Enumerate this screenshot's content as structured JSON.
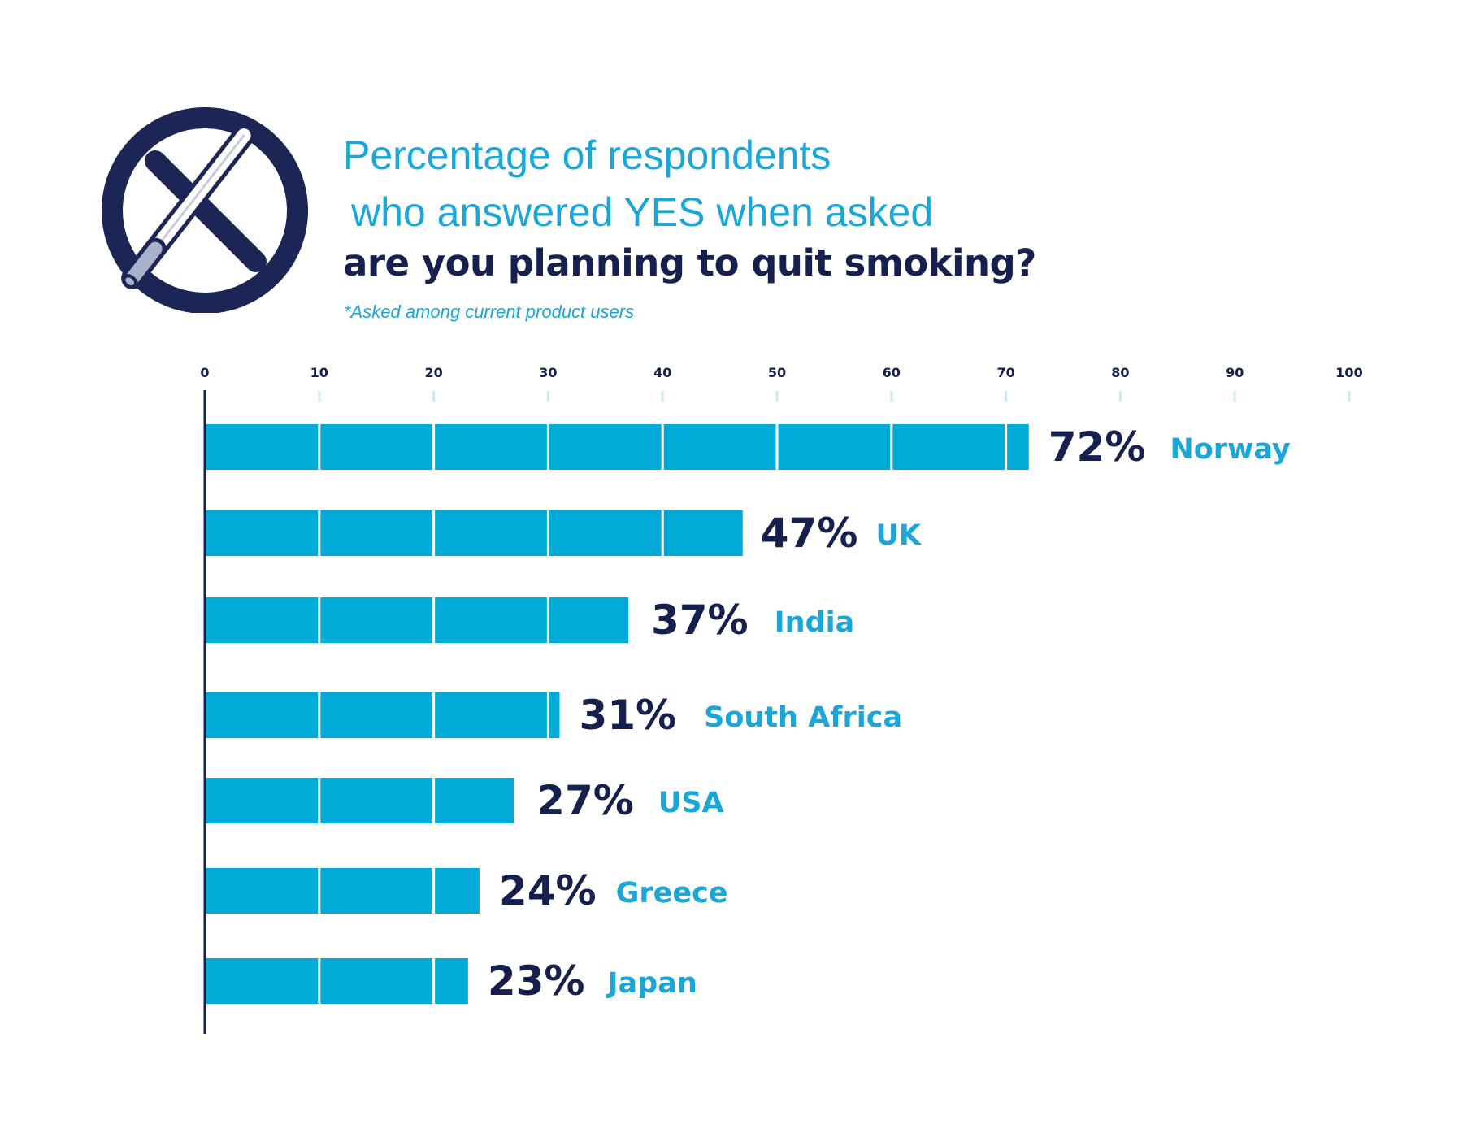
{
  "header": {
    "title_line1": "Percentage of respondents",
    "title_line2": "who answered YES when asked",
    "title_line3": "are you planning to quit smoking?",
    "subtitle": "*Asked among current product users"
  },
  "icon": "no-smoking-icon",
  "colors": {
    "bar": "#00abd8",
    "value_text": "#15204f",
    "label_text": "#1aa6d6",
    "axis": "#15204f",
    "tick": "#cfe9f5"
  },
  "chart_data": {
    "type": "bar",
    "orientation": "horizontal",
    "title": "Percentage of respondents who answered YES when asked are you planning to quit smoking?",
    "xlim": [
      0,
      100
    ],
    "xticks": [
      0,
      10,
      20,
      30,
      40,
      50,
      60,
      70,
      80,
      90,
      100
    ],
    "grid": false,
    "categories": [
      "Norway",
      "UK",
      "India",
      "South Africa",
      "USA",
      "Greece",
      "Japan"
    ],
    "values": [
      72,
      47,
      37,
      31,
      27,
      24,
      23
    ],
    "value_labels": [
      "72%",
      "47%",
      "37%",
      "31%",
      "27%",
      "24%",
      "23%"
    ]
  }
}
